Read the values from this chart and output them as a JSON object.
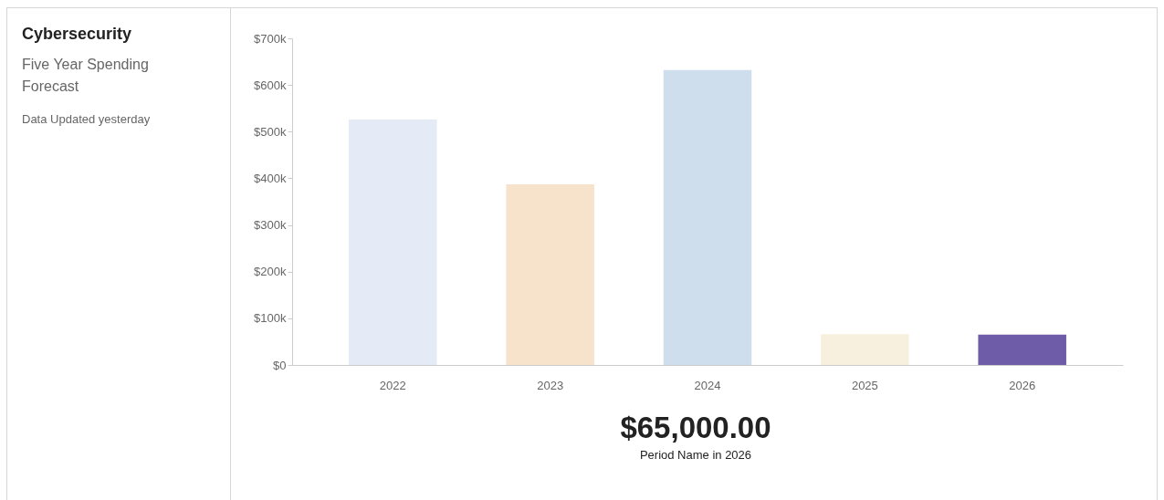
{
  "chart_data": {
    "type": "bar",
    "title": "Cybersecurity",
    "subtitle": "Five Year Spending Forecast",
    "annotations": [
      "Data Updated yesterday",
      "$65,000.00",
      "Period Name in 2026"
    ],
    "categories": [
      "2022",
      "2023",
      "2024",
      "2025",
      "2026"
    ],
    "values": [
      526000,
      387000,
      632000,
      66000,
      65000
    ],
    "colors": [
      "#e4eaf6",
      "#f7e3cb",
      "#cfdeed",
      "#f8f0df",
      "#6f5ca8"
    ],
    "ylim": [
      0,
      700000
    ],
    "yticks": [
      {
        "value": 0,
        "label": "$0"
      },
      {
        "value": 100000,
        "label": "$100k"
      },
      {
        "value": 200000,
        "label": "$200k"
      },
      {
        "value": 300000,
        "label": "$300k"
      },
      {
        "value": 400000,
        "label": "$400k"
      },
      {
        "value": 500000,
        "label": "$500k"
      },
      {
        "value": 600000,
        "label": "$600k"
      },
      {
        "value": 700000,
        "label": "$700k"
      }
    ],
    "grid": false
  }
}
